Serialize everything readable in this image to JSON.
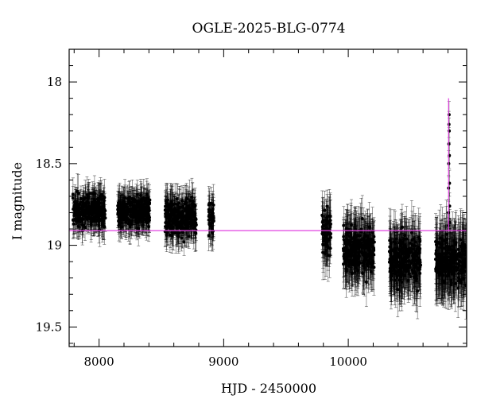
{
  "chart_data": {
    "type": "scatter",
    "title": "OGLE-2025-BLG-0774",
    "xlabel": "HJD - 2450000",
    "ylabel": "I magnitude",
    "xlim": [
      7760,
      10950
    ],
    "ylim": [
      19.62,
      17.8
    ],
    "y_inverted": true,
    "grid": false,
    "x_ticks": [
      {
        "value": 8000,
        "label": "8000"
      },
      {
        "value": 9000,
        "label": "9000"
      },
      {
        "value": 10000,
        "label": "10000"
      }
    ],
    "y_ticks": [
      {
        "value": 18,
        "label": "18"
      },
      {
        "value": 18.5,
        "label": "18.5"
      },
      {
        "value": 19,
        "label": "19"
      },
      {
        "value": 19.5,
        "label": "19.5"
      }
    ],
    "baseline": {
      "value": 18.91,
      "color": "#e040e0"
    },
    "event_marker": {
      "x": 10805,
      "color": "#e040e0"
    },
    "series": [
      {
        "color": "#000000",
        "seasons": [
          {
            "start": 7790,
            "end": 8050,
            "center": 18.79,
            "spread": 0.15,
            "err": 0.09
          },
          {
            "start": 8150,
            "end": 8410,
            "center": 18.79,
            "spread": 0.14,
            "err": 0.09
          },
          {
            "start": 8530,
            "end": 8780,
            "center": 18.83,
            "spread": 0.16,
            "err": 0.1
          },
          {
            "start": 8880,
            "end": 8920,
            "center": 18.85,
            "spread": 0.16,
            "err": 0.1
          },
          {
            "start": 9790,
            "end": 9860,
            "center": 18.93,
            "spread": 0.22,
            "err": 0.13
          },
          {
            "start": 9960,
            "end": 10210,
            "center": 19.03,
            "spread": 0.2,
            "err": 0.15
          },
          {
            "start": 10330,
            "end": 10580,
            "center": 19.09,
            "spread": 0.2,
            "err": 0.16
          },
          {
            "start": 10700,
            "end": 10950,
            "center": 19.1,
            "spread": 0.2,
            "err": 0.17
          }
        ],
        "peak": [
          {
            "x": 10803,
            "y": 18.88
          },
          {
            "x": 10804,
            "y": 18.8
          },
          {
            "x": 10805,
            "y": 18.65
          },
          {
            "x": 10806,
            "y": 18.5
          },
          {
            "x": 10807,
            "y": 18.38
          },
          {
            "x": 10808,
            "y": 18.26
          },
          {
            "x": 10809,
            "y": 18.2
          },
          {
            "x": 10810,
            "y": 18.3
          },
          {
            "x": 10811,
            "y": 18.45
          },
          {
            "x": 10812,
            "y": 18.62
          },
          {
            "x": 10813,
            "y": 18.76
          },
          {
            "x": 10815,
            "y": 18.86
          }
        ]
      }
    ]
  }
}
